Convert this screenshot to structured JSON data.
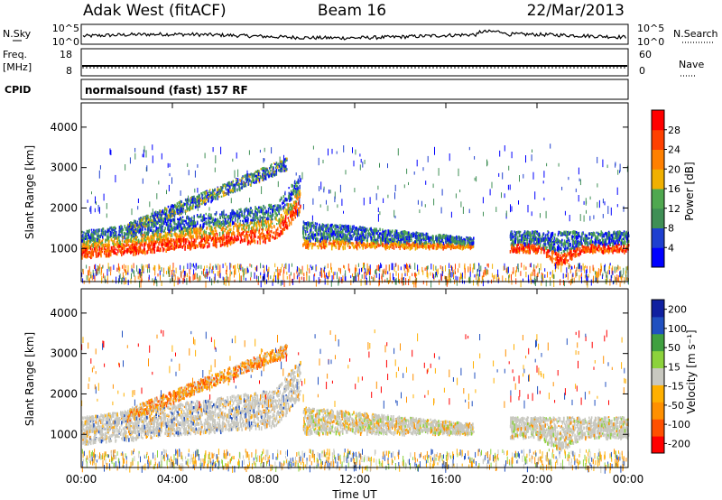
{
  "header": {
    "station": "Adak West (fitACF)",
    "beam": "Beam 16",
    "date": "22/Mar/2013"
  },
  "strip_panels": {
    "nsky": {
      "left_label": "N.Sky",
      "right_label": "N.Search",
      "left_ticks": [
        "10^5",
        "10^0"
      ],
      "right_ticks": [
        "10^5",
        "10^0"
      ]
    },
    "freq": {
      "left_label_1": "Freq.",
      "left_label_2": "[MHz]",
      "right_label": "Nave",
      "left_ticks": [
        "18",
        "8"
      ],
      "right_ticks": [
        "60",
        "0"
      ]
    },
    "cpid": {
      "left_label": "CPID",
      "text": "normalsound (fast) 157 RF"
    }
  },
  "colors": {
    "power": [
      "#0000ff",
      "#1e3fd0",
      "#3f8f55",
      "#4fa84f",
      "#f0b000",
      "#ff8000",
      "#ff4000",
      "#ff0000"
    ],
    "velocity": [
      "#ff0000",
      "#ff5000",
      "#ff9000",
      "#ffb000",
      "#c8c8c0",
      "#8cd23c",
      "#40a040",
      "#2050c0",
      "#1020a0"
    ],
    "ground_scatter": "#c8c8c0"
  },
  "chart_data": [
    {
      "type": "heatmap",
      "panel": "power",
      "ylabel": "Slant Range [km]",
      "xlabel": "",
      "x_ticks": [
        "00:00",
        "04:00",
        "08:00",
        "12:00",
        "16:00",
        "20:00",
        "00:00"
      ],
      "x_range_hours": [
        0,
        24
      ],
      "y_ticks": [
        1000,
        2000,
        3000,
        4000
      ],
      "y_range_km": [
        180,
        4600
      ],
      "colorbar_label": "Power [dB]",
      "colorbar_ticks": [
        "4",
        "8",
        "12",
        "16",
        "20",
        "24",
        "28"
      ],
      "colorbar_range": [
        0,
        32
      ]
    },
    {
      "type": "heatmap",
      "panel": "velocity",
      "ylabel": "Slant Range [km]",
      "xlabel": "Time UT",
      "x_ticks": [
        "00:00",
        "04:00",
        "08:00",
        "12:00",
        "16:00",
        "20:00",
        "00:00"
      ],
      "x_range_hours": [
        0,
        24
      ],
      "y_ticks": [
        1000,
        2000,
        3000,
        4000
      ],
      "y_range_km": [
        180,
        4600
      ],
      "colorbar_label": "Velocity [m s⁻¹]",
      "colorbar_ticks": [
        "200",
        "100",
        "50",
        "15",
        "-15",
        "-50",
        "-100",
        "-200"
      ]
    }
  ]
}
